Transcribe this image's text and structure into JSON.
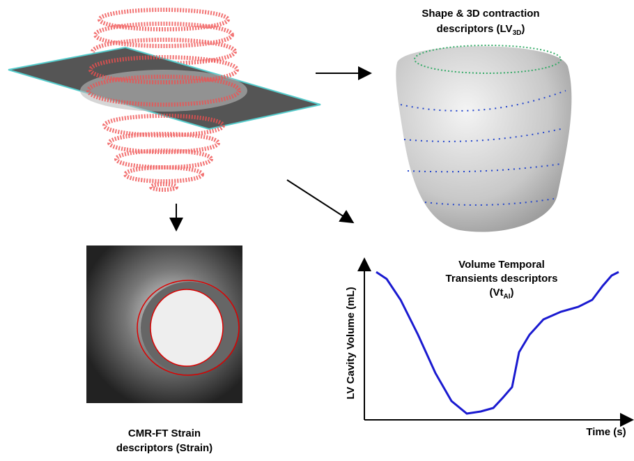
{
  "shape_panel": {
    "line1": "Shape & 3D contraction",
    "line2": "descriptors (LV",
    "subscript": "3D",
    "suffix": ")"
  },
  "volume_panel": {
    "line1": "Volume Temporal",
    "line2": "Transients descriptors",
    "line3": "(Vt",
    "subscript": "AI",
    "suffix": ")",
    "y_label": "LV Cavity Volume (mL)",
    "x_label": "Time (s)"
  },
  "strain_panel": {
    "line1": "CMR-FT Strain",
    "line2": "descriptors (Strain)"
  }
}
